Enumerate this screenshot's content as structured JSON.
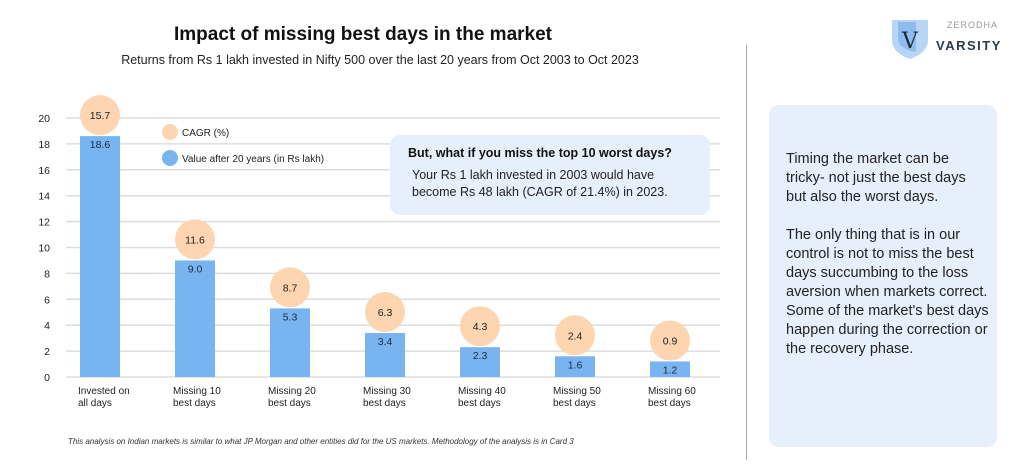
{
  "header": {
    "title": "Impact of missing best days in the market",
    "subtitle": "Returns from Rs 1 lakh invested in Nifty 500 over the last 20 years from Oct 2003 to Oct 2023"
  },
  "brand": {
    "top": "ZERODHA",
    "name": "VARSITY",
    "logo_letter": "V"
  },
  "callout": {
    "heading": "But, what if you miss the top 10 worst days?",
    "body": "Your Rs 1 lakh invested in 2003 would have become Rs 48 lakh (CAGR of 21.4%) in 2023."
  },
  "side": {
    "p1": "Timing the market can be tricky- not just the best days but also the worst days.",
    "p2": "The only thing that is in our control is not to miss the best days succumbing to the loss aversion when markets correct. Some of the market's best days happen during the correction or the recovery phase."
  },
  "footnote": "This analysis on Indian markets is similar to what JP Morgan and other entities did for the US markets. Methodology of the analysis is in Card 3",
  "chart_data": {
    "type": "bar",
    "categories": [
      [
        "Invested on",
        "all days"
      ],
      [
        "Missing 10",
        "best days"
      ],
      [
        "Missing 20",
        "best days"
      ],
      [
        "Missing 30",
        "best days"
      ],
      [
        "Missing 40",
        "best days"
      ],
      [
        "Missing 50",
        "best days"
      ],
      [
        "Missing 60",
        "best days"
      ]
    ],
    "series": [
      {
        "name": "Value after 20 years (in Rs lakh)",
        "values": [
          18.6,
          9.0,
          5.3,
          3.4,
          2.3,
          1.6,
          1.2
        ],
        "color": "#78b4f0"
      },
      {
        "name": "CAGR (%)",
        "values": [
          15.7,
          11.6,
          8.7,
          6.3,
          4.3,
          2.4,
          0.9
        ],
        "color": "#fdd5b1",
        "marker": "circle"
      }
    ],
    "yticks": [
      0,
      2,
      4,
      6,
      8,
      10,
      12,
      14,
      16,
      18,
      20
    ],
    "ylim": [
      0,
      20
    ],
    "grid": true,
    "legend": "top-left"
  }
}
